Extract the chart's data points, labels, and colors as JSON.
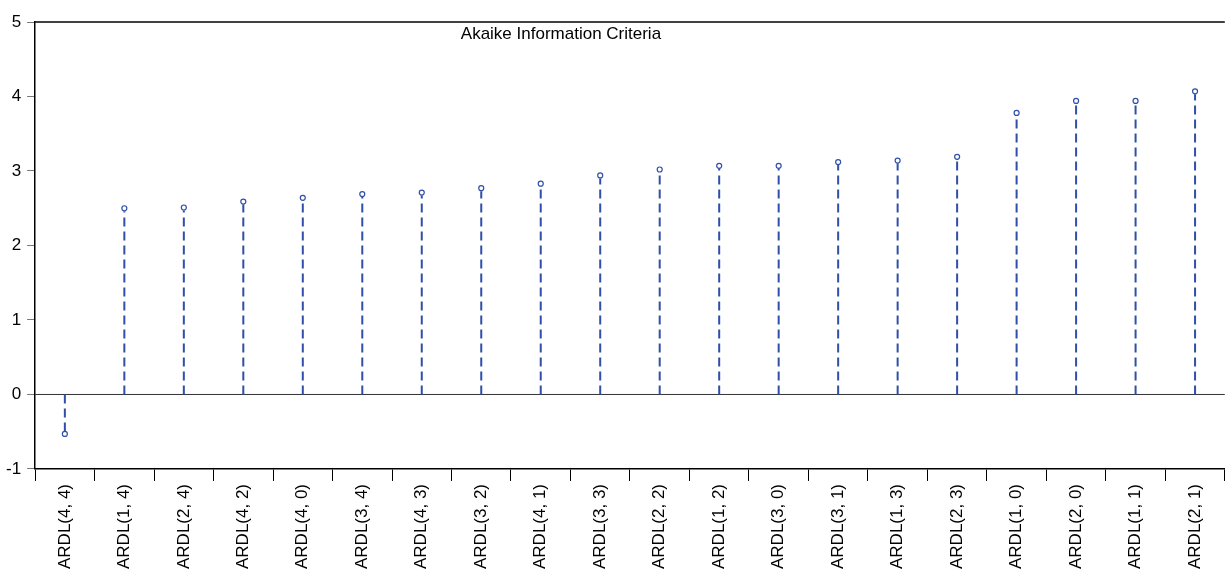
{
  "chart_data": {
    "type": "lollipop",
    "title": "Akaike Information Criteria",
    "categories": [
      "ARDL(4, 4)",
      "ARDL(1, 4)",
      "ARDL(2, 4)",
      "ARDL(4, 2)",
      "ARDL(4, 0)",
      "ARDL(3, 4)",
      "ARDL(4, 3)",
      "ARDL(3, 2)",
      "ARDL(4, 1)",
      "ARDL(3, 3)",
      "ARDL(2, 2)",
      "ARDL(1, 2)",
      "ARDL(3, 0)",
      "ARDL(3, 1)",
      "ARDL(1, 3)",
      "ARDL(2, 3)",
      "ARDL(1, 0)",
      "ARDL(2, 0)",
      "ARDL(1, 1)",
      "ARDL(2, 1)"
    ],
    "values": [
      -0.53,
      2.5,
      2.51,
      2.59,
      2.64,
      2.69,
      2.71,
      2.77,
      2.83,
      2.94,
      3.02,
      3.07,
      3.07,
      3.12,
      3.14,
      3.19,
      3.78,
      3.94,
      3.94,
      4.07
    ],
    "color": "#2f4fa8",
    "ylim": [
      -1,
      5
    ],
    "yticks": [
      -1,
      0,
      1,
      2,
      3,
      4,
      5
    ],
    "grid": false,
    "legend": false,
    "marker": "circle",
    "line_style": "dashed",
    "ref_lines": [
      {
        "axis": "y",
        "value": 0
      }
    ]
  }
}
